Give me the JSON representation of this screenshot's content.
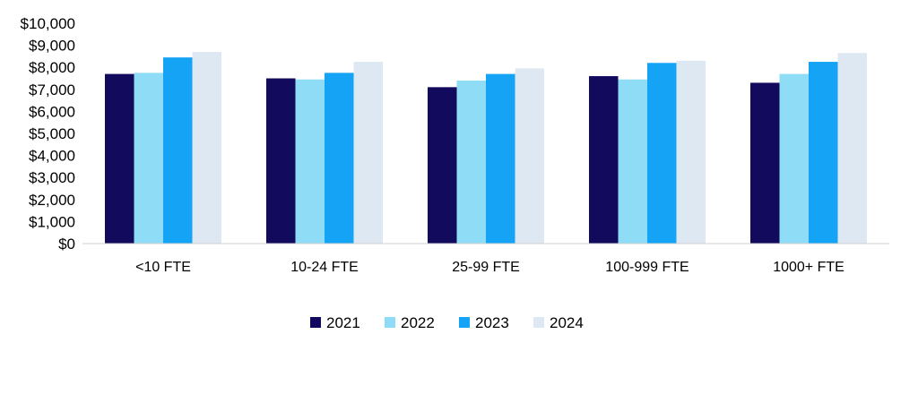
{
  "chart_data": {
    "type": "bar",
    "categories": [
      "<10 FTE",
      "10-24 FTE",
      "25-99 FTE",
      "100-999 FTE",
      "1000+ FTE"
    ],
    "series": [
      {
        "name": "2021",
        "color": "#120a5c",
        "values": [
          7700,
          7500,
          7100,
          7600,
          7300
        ]
      },
      {
        "name": "2022",
        "color": "#8fdcf7",
        "values": [
          7750,
          7450,
          7400,
          7450,
          7700
        ]
      },
      {
        "name": "2023",
        "color": "#15a3f5",
        "values": [
          8450,
          7750,
          7700,
          8200,
          8250
        ]
      },
      {
        "name": "2024",
        "color": "#dde8f3",
        "values": [
          8700,
          8250,
          7950,
          8300,
          8650
        ]
      }
    ],
    "y_ticks": [
      "$0",
      "$1,000",
      "$2,000",
      "$3,000",
      "$4,000",
      "$5,000",
      "$6,000",
      "$7,000",
      "$8,000",
      "$9,000",
      "$10,000"
    ],
    "ylim": [
      0,
      10000
    ],
    "grid": false,
    "legend_position": "bottom"
  }
}
